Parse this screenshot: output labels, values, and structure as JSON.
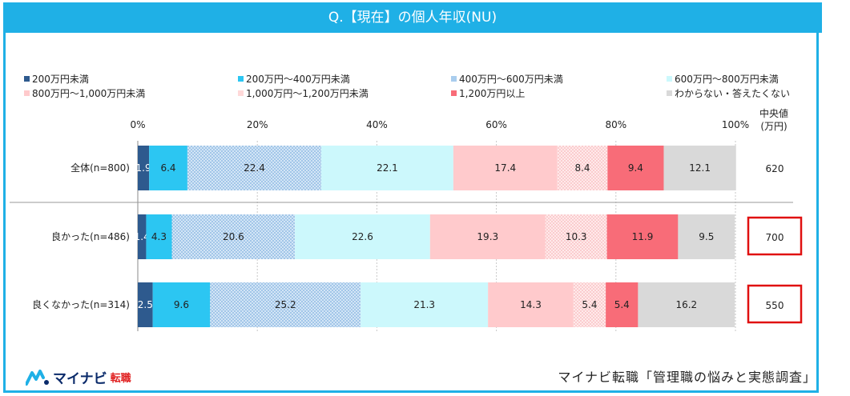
{
  "header": {
    "title": "Q.【現在】の個人年収(NU)"
  },
  "median_header": {
    "line1": "中央値",
    "line2": "(万円)"
  },
  "footer": {
    "logo_main": "マイナビ",
    "logo_sub": "転職",
    "source": "マイナビ転職「管理職の悩みと実態調査」"
  },
  "colors": {
    "accent": "#1fb0e6",
    "highlight_box": "#e01010",
    "series": [
      "#2e5a8e",
      "#2cc6f2",
      "#a9cdee",
      "#ccf8fc",
      "#ffcacc",
      "#ffd9d9",
      "#f86c78",
      "#d9d9d9"
    ]
  },
  "chart_data": {
    "type": "bar",
    "orientation": "horizontal",
    "stacked": true,
    "percent": true,
    "xlim": [
      0,
      100
    ],
    "x_ticks": [
      "0%",
      "20%",
      "40%",
      "60%",
      "80%",
      "100%"
    ],
    "legend_position": "top",
    "categories": [
      "全体(n=800)",
      "良かった(n=486)",
      "良くなかった(n=314)"
    ],
    "series": [
      {
        "name": "200万円未満",
        "values": [
          1.9,
          1.4,
          2.5
        ],
        "labels": [
          "1.9",
          "1.4",
          "2.5"
        ]
      },
      {
        "name": "200万円〜400万円未満",
        "values": [
          6.4,
          4.3,
          9.6
        ],
        "labels": [
          "6.4",
          "4.3",
          "9.6"
        ]
      },
      {
        "name": "400万円〜600万円未満",
        "values": [
          22.4,
          20.6,
          25.2
        ],
        "labels": [
          "22.4",
          "20.6",
          "25.2"
        ]
      },
      {
        "name": "600万円〜800万円未満",
        "values": [
          22.1,
          22.6,
          21.3
        ],
        "labels": [
          "22.1",
          "22.6",
          "21.3"
        ]
      },
      {
        "name": "800万円〜1,000万円未満",
        "values": [
          17.4,
          19.3,
          14.3
        ],
        "labels": [
          "17.4",
          "19.3",
          "14.3"
        ]
      },
      {
        "name": "1,000万円〜1,200万円未満",
        "values": [
          8.4,
          10.3,
          5.4
        ],
        "labels": [
          "8.4",
          "10.3",
          "5.4"
        ]
      },
      {
        "name": "1,200万円以上",
        "values": [
          9.4,
          11.9,
          5.4
        ],
        "labels": [
          "9.4",
          "11.9",
          "5.4"
        ]
      },
      {
        "name": "わからない・答えたくない",
        "values": [
          12.1,
          9.5,
          16.2
        ],
        "labels": [
          "12.1",
          "9.5",
          "16.2"
        ]
      }
    ],
    "medians": [
      "620",
      "700",
      "550"
    ],
    "highlighted_medians": [
      false,
      true,
      true
    ]
  }
}
